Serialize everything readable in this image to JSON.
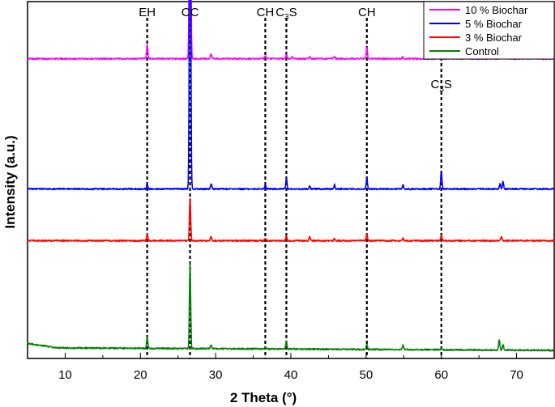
{
  "chart_data": {
    "type": "line",
    "title": "",
    "xlabel": "2 Theta (°)",
    "ylabel": "Intensity (a.u.)",
    "xlim": [
      5,
      75
    ],
    "xticks": [
      10,
      20,
      30,
      40,
      50,
      60,
      70
    ],
    "y_ticks_shown": false,
    "legend_position": "top-right",
    "reference_lines": [
      {
        "x": 20.9,
        "label": "EH"
      },
      {
        "x": 26.6,
        "label": "CC"
      },
      {
        "x": 36.6,
        "label": "CH"
      },
      {
        "x": 39.4,
        "label": "C3S",
        "label_main": "C",
        "label_sub": "3",
        "label_tail": "S"
      },
      {
        "x": 50.1,
        "label": "CH"
      },
      {
        "x": 60.0,
        "label": "C3S",
        "label_main": "C",
        "label_sub": "3",
        "label_tail": "S",
        "raised": true
      }
    ],
    "series": [
      {
        "name": "10 % Biochar",
        "color": "#ff00ff",
        "baseline": 0.84,
        "peaks": [
          [
            20.9,
            0.04
          ],
          [
            26.6,
            0.82
          ],
          [
            29.4,
            0.015
          ],
          [
            36.6,
            0.008
          ],
          [
            39.4,
            0.012
          ],
          [
            40.2,
            0.006
          ],
          [
            42.5,
            0.006
          ],
          [
            45.8,
            0.006
          ],
          [
            50.1,
            0.03
          ],
          [
            54.9,
            0.006
          ],
          [
            60.0,
            0.035
          ],
          [
            67.8,
            0.015
          ],
          [
            68.2,
            0.03
          ]
        ]
      },
      {
        "name": "5 % Biochar",
        "color": "#0000ff",
        "baseline": 0.475,
        "peaks": [
          [
            20.9,
            0.015
          ],
          [
            26.6,
            0.94
          ],
          [
            29.4,
            0.015
          ],
          [
            36.6,
            0.012
          ],
          [
            39.4,
            0.03
          ],
          [
            42.5,
            0.008
          ],
          [
            45.8,
            0.012
          ],
          [
            50.1,
            0.03
          ],
          [
            54.9,
            0.012
          ],
          [
            60.0,
            0.05
          ],
          [
            67.8,
            0.015
          ],
          [
            68.2,
            0.02
          ]
        ]
      },
      {
        "name": "3 % Biochar",
        "color": "#ff0000",
        "baseline": 0.33,
        "peaks": [
          [
            20.9,
            0.02
          ],
          [
            26.6,
            0.12
          ],
          [
            29.4,
            0.012
          ],
          [
            36.6,
            0.006
          ],
          [
            39.4,
            0.012
          ],
          [
            42.5,
            0.012
          ],
          [
            45.8,
            0.006
          ],
          [
            50.1,
            0.02
          ],
          [
            54.9,
            0.006
          ],
          [
            60.0,
            0.015
          ],
          [
            68.0,
            0.012
          ]
        ]
      },
      {
        "name": "Control",
        "color": "#008000",
        "baseline": 0.03,
        "peaks": [
          [
            20.9,
            0.03
          ],
          [
            26.6,
            0.24
          ],
          [
            29.4,
            0.01
          ],
          [
            36.6,
            0.005
          ],
          [
            39.4,
            0.02
          ],
          [
            50.1,
            0.015
          ],
          [
            54.9,
            0.012
          ],
          [
            60.0,
            0.005
          ],
          [
            67.7,
            0.03
          ],
          [
            68.2,
            0.015
          ]
        ]
      }
    ]
  }
}
